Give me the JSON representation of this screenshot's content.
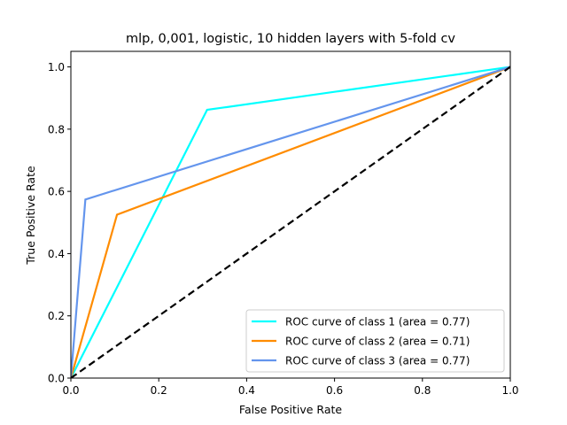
{
  "chart_data": {
    "type": "line",
    "title": "mlp, 0,001, logistic, 10 hidden layers with 5-fold cv",
    "xlabel": "False Positive Rate",
    "ylabel": "True Positive Rate",
    "xlim": [
      0,
      1
    ],
    "ylim": [
      0,
      1.05
    ],
    "x_ticks": [
      0.0,
      0.2,
      0.4,
      0.6,
      0.8,
      1.0
    ],
    "x_tick_labels": [
      "0.0",
      "0.2",
      "0.4",
      "0.6",
      "0.8",
      "1.0"
    ],
    "y_ticks": [
      0.0,
      0.2,
      0.4,
      0.6,
      0.8,
      1.0
    ],
    "y_tick_labels": [
      "0.0",
      "0.2",
      "0.4",
      "0.6",
      "0.8",
      "1.0"
    ],
    "grid": false,
    "legend_position": "lower-right",
    "series": [
      {
        "name": "ROC curve of class 1 (area = 0.77)",
        "color": "#00ffff",
        "points": [
          [
            0.0,
            0.0
          ],
          [
            0.31,
            0.862
          ],
          [
            1.0,
            1.0
          ]
        ]
      },
      {
        "name": "ROC curve of class 2 (area = 0.71)",
        "color": "#ff8c00",
        "points": [
          [
            0.0,
            0.0
          ],
          [
            0.105,
            0.525
          ],
          [
            1.0,
            1.0
          ]
        ]
      },
      {
        "name": "ROC curve of class 3 (area = 0.77)",
        "color": "#6495ed",
        "points": [
          [
            0.0,
            0.0
          ],
          [
            0.033,
            0.574
          ],
          [
            1.0,
            1.0
          ]
        ]
      }
    ],
    "reference_line": {
      "color": "#000000",
      "style": "dashed",
      "points": [
        [
          0.0,
          0.0
        ],
        [
          1.0,
          1.0
        ]
      ]
    }
  }
}
